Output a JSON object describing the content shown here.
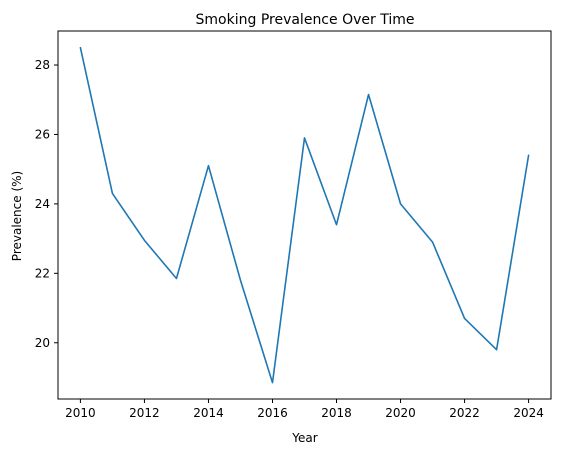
{
  "chart_data": {
    "type": "line",
    "title": "Smoking Prevalence Over Time",
    "xlabel": "Year",
    "ylabel": "Prevalence (%)",
    "xlim": [
      2009.3,
      2024.7
    ],
    "ylim": [
      18.38,
      28.98
    ],
    "x_ticks": [
      2010,
      2012,
      2014,
      2016,
      2018,
      2020,
      2022,
      2024
    ],
    "y_ticks": [
      20,
      22,
      24,
      26,
      28
    ],
    "grid": false,
    "legend": "none",
    "series": [
      {
        "color": "#1f77b4",
        "points": [
          {
            "x": 2010,
            "y": 28.5
          },
          {
            "x": 2011,
            "y": 24.3
          },
          {
            "x": 2012,
            "y": 22.95
          },
          {
            "x": 2013,
            "y": 21.85
          },
          {
            "x": 2014,
            "y": 25.1
          },
          {
            "x": 2015,
            "y": 21.8
          },
          {
            "x": 2016,
            "y": 18.85
          },
          {
            "x": 2017,
            "y": 25.9
          },
          {
            "x": 2018,
            "y": 23.4
          },
          {
            "x": 2019,
            "y": 27.15
          },
          {
            "x": 2020,
            "y": 24.0
          },
          {
            "x": 2021,
            "y": 22.9
          },
          {
            "x": 2022,
            "y": 20.7
          },
          {
            "x": 2023,
            "y": 19.8
          },
          {
            "x": 2024,
            "y": 25.4
          }
        ]
      }
    ]
  }
}
